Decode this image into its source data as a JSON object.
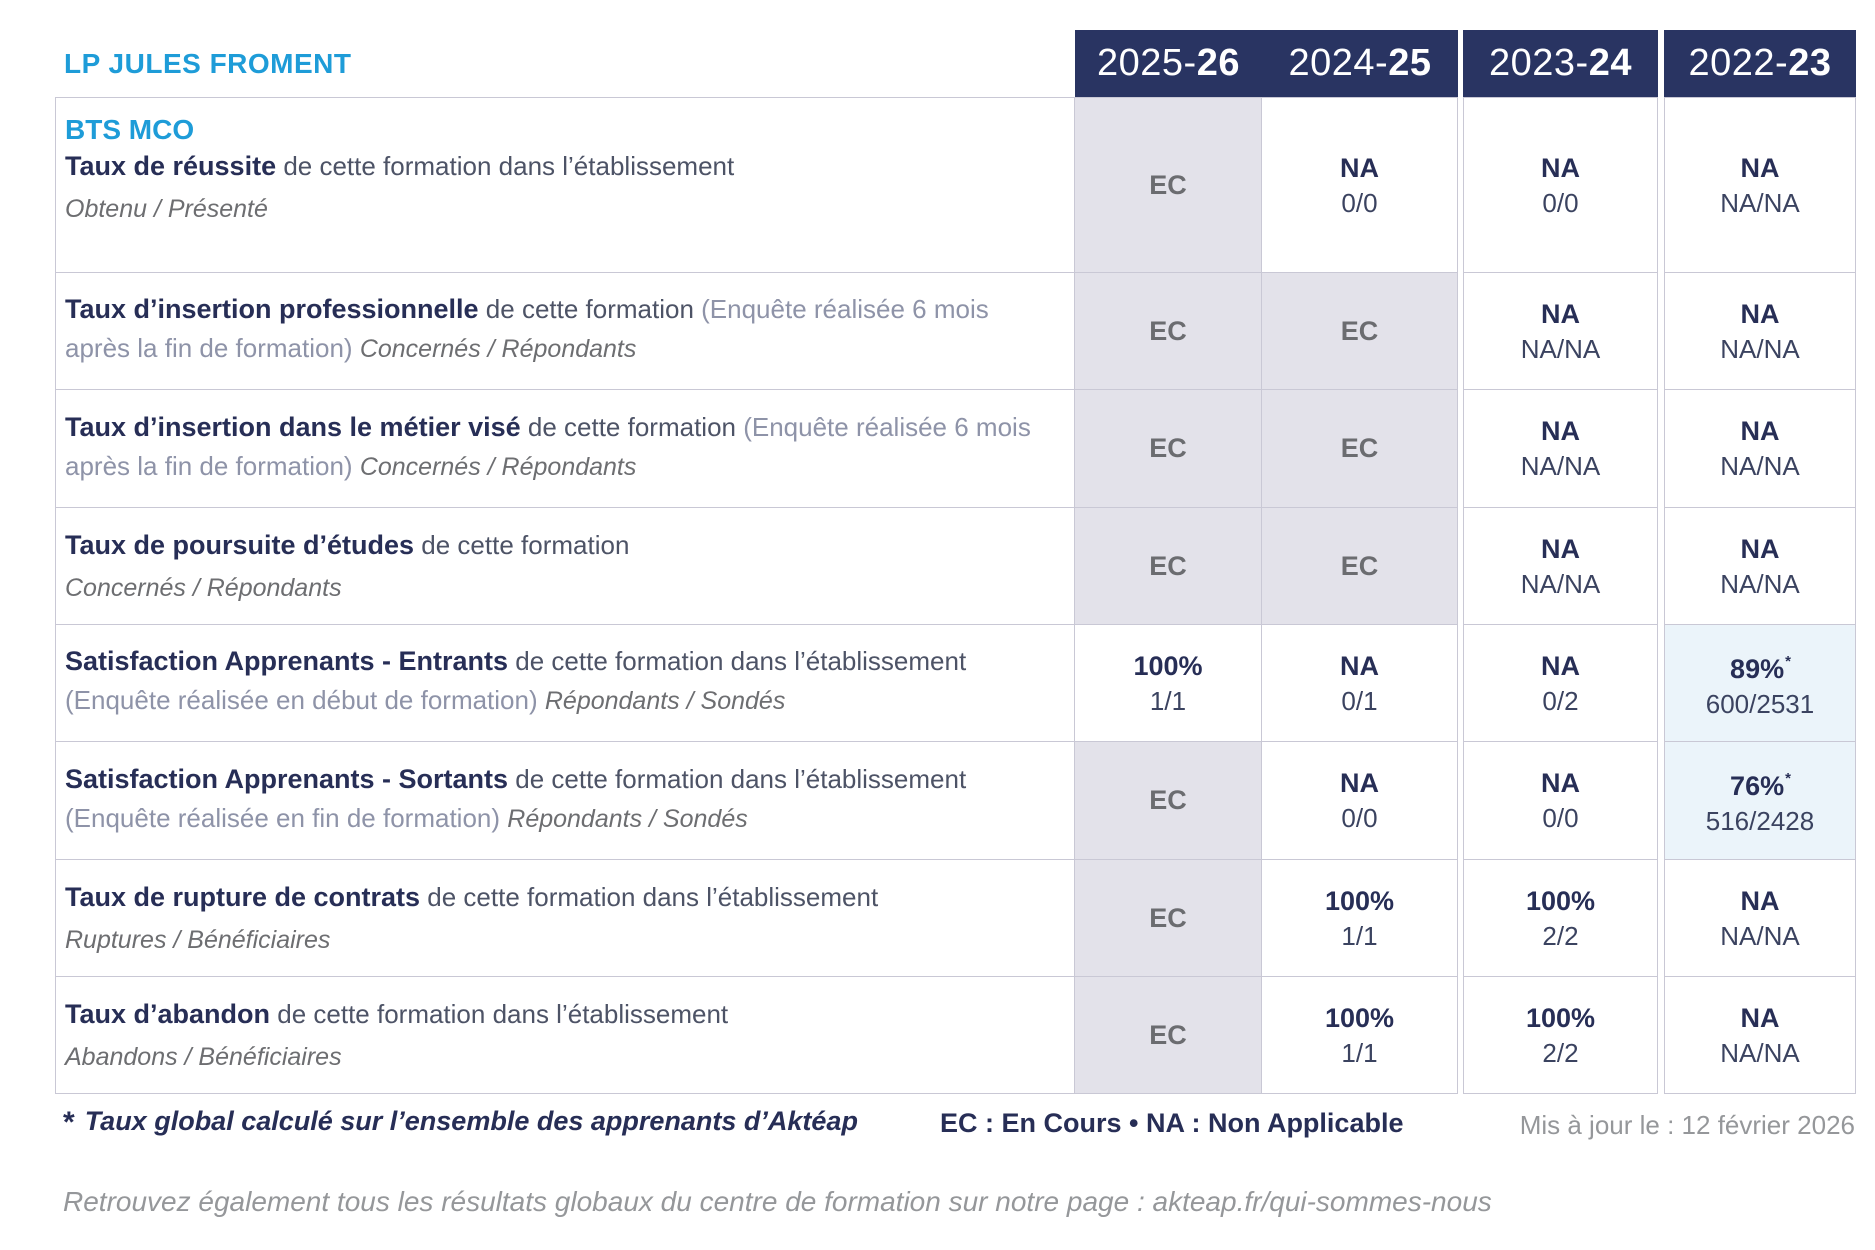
{
  "header": {
    "school": "LP JULES FROMENT",
    "years": [
      {
        "prefix": "2025-",
        "bold": "26"
      },
      {
        "prefix": "2024-",
        "bold": "25"
      },
      {
        "prefix": "2023-",
        "bold": "24"
      },
      {
        "prefix": "2022-",
        "bold": "23"
      }
    ]
  },
  "rows": [
    {
      "heading": "BTS MCO",
      "segments": [
        {
          "style": "bold",
          "text": "Taux de réussite"
        },
        {
          "style": "gray",
          "text": " de cette formation dans l’établissement"
        }
      ],
      "subtitle": "Obtenu / Présenté",
      "cells": [
        {
          "main": "EC",
          "bg": "ec"
        },
        {
          "main": "NA",
          "sub": "0/0"
        },
        {
          "main": "NA",
          "sub": "0/0"
        },
        {
          "main": "NA",
          "sub": "NA/NA"
        }
      ]
    },
    {
      "segments": [
        {
          "style": "bold",
          "text": "Taux d’insertion professionnelle"
        },
        {
          "style": "gray",
          "text": " de cette formation "
        },
        {
          "style": "light",
          "text": "(Enquête réalisée 6 mois après la fin de formation) "
        },
        {
          "style": "italic",
          "text": "Concernés / Répondants"
        }
      ],
      "cells": [
        {
          "main": "EC",
          "bg": "ec"
        },
        {
          "main": "EC",
          "bg": "ec"
        },
        {
          "main": "NA",
          "sub": "NA/NA"
        },
        {
          "main": "NA",
          "sub": "NA/NA"
        }
      ]
    },
    {
      "segments": [
        {
          "style": "bold",
          "text": "Taux d’insertion dans le métier visé"
        },
        {
          "style": "gray",
          "text": " de cette formation "
        },
        {
          "style": "light",
          "text": "(Enquête réalisée 6 mois après la fin de formation) "
        },
        {
          "style": "italic",
          "text": "Concernés / Répondants"
        }
      ],
      "cells": [
        {
          "main": "EC",
          "bg": "ec"
        },
        {
          "main": "EC",
          "bg": "ec"
        },
        {
          "main": "NA",
          "sub": "NA/NA"
        },
        {
          "main": "NA",
          "sub": "NA/NA"
        }
      ]
    },
    {
      "segments": [
        {
          "style": "bold",
          "text": "Taux de poursuite d’études"
        },
        {
          "style": "gray",
          "text": " de cette formation"
        }
      ],
      "subtitle": "Concernés / Répondants",
      "cells": [
        {
          "main": "EC",
          "bg": "ec"
        },
        {
          "main": "EC",
          "bg": "ec"
        },
        {
          "main": "NA",
          "sub": "NA/NA"
        },
        {
          "main": "NA",
          "sub": "NA/NA"
        }
      ]
    },
    {
      "segments": [
        {
          "style": "bold",
          "text": "Satisfaction Apprenants - Entrants"
        },
        {
          "style": "gray",
          "text": " de cette formation dans l’établissement "
        },
        {
          "style": "light",
          "text": "(Enquête réalisée en début de formation) "
        },
        {
          "style": "italic",
          "text": "Répondants / Sondés"
        }
      ],
      "cells": [
        {
          "main": "100%",
          "sub": "1/1"
        },
        {
          "main": "NA",
          "sub": "0/1"
        },
        {
          "main": "NA",
          "sub": "0/2"
        },
        {
          "main": "89%",
          "star": "*",
          "sub": "600/2531",
          "bg": "hl"
        }
      ]
    },
    {
      "segments": [
        {
          "style": "bold",
          "text": "Satisfaction Apprenants - Sortants"
        },
        {
          "style": "gray",
          "text": " de cette formation dans l’établissement "
        },
        {
          "style": "light",
          "text": "(Enquête réalisée en fin de formation) "
        },
        {
          "style": "italic",
          "text": "Répondants / Sondés"
        }
      ],
      "cells": [
        {
          "main": "EC",
          "bg": "ec"
        },
        {
          "main": "NA",
          "sub": "0/0"
        },
        {
          "main": "NA",
          "sub": "0/0"
        },
        {
          "main": "76%",
          "star": "*",
          "sub": "516/2428",
          "bg": "hl"
        }
      ]
    },
    {
      "segments": [
        {
          "style": "bold",
          "text": "Taux de rupture de contrats"
        },
        {
          "style": "gray",
          "text": " de cette formation dans l’établissement"
        }
      ],
      "subtitle": "Ruptures / Bénéficiaires",
      "cells": [
        {
          "main": "EC",
          "bg": "ec"
        },
        {
          "main": "100%",
          "sub": "1/1"
        },
        {
          "main": "100%",
          "sub": "2/2"
        },
        {
          "main": "NA",
          "sub": "NA/NA"
        }
      ]
    },
    {
      "segments": [
        {
          "style": "bold",
          "text": "Taux d’abandon"
        },
        {
          "style": "gray",
          "text": " de cette formation dans l’établissement"
        }
      ],
      "subtitle": "Abandons / Bénéficiaires",
      "cells": [
        {
          "main": "EC",
          "bg": "ec"
        },
        {
          "main": "100%",
          "sub": "1/1"
        },
        {
          "main": "100%",
          "sub": "2/2"
        },
        {
          "main": "NA",
          "sub": "NA/NA"
        }
      ]
    }
  ],
  "footnote": {
    "star": "*",
    "text": "Taux global calculé sur l’ensemble des apprenants d’Aktéap",
    "legend": "EC : En Cours   •   NA : Non Applicable",
    "updated": "Mis à jour le : 12 février 2026"
  },
  "footer": "Retrouvez également tous les résultats globaux du centre de formation sur notre page : akteap.fr/qui-sommes-nous",
  "colors": {
    "brand_blue": "#1e9cd8",
    "header_navy": "#293462",
    "text_navy": "#272e56",
    "border": "#c9c8d5",
    "ec_cell_bg": "#e3e2ea",
    "highlight_cell_bg": "#ebf4fa",
    "ec_text": "#6b6c70",
    "muted_gray": "#95979a"
  }
}
